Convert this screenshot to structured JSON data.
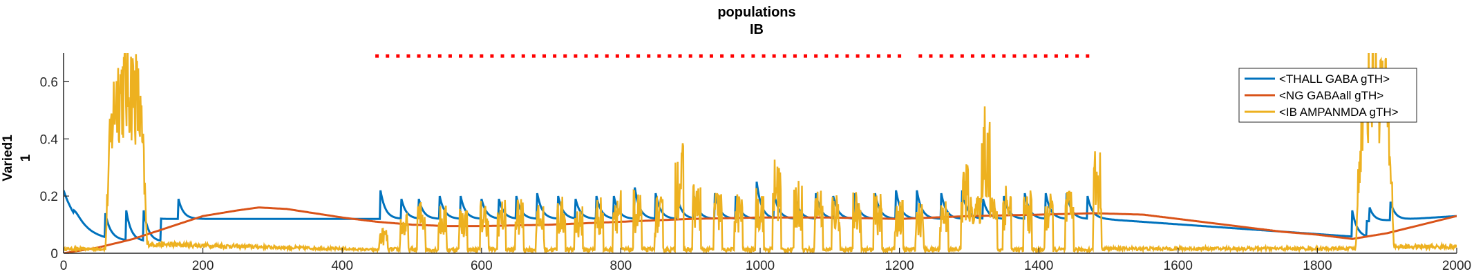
{
  "title_line1": "populations",
  "title_line2": "IB",
  "ylabel_line1": "Varied1",
  "ylabel_line2": "1",
  "chart_data": {
    "type": "line",
    "title": "populations IB",
    "xlabel": "",
    "ylabel": "Varied1 1",
    "xlim": [
      0,
      2000
    ],
    "ylim": [
      0,
      0.7
    ],
    "xticks": [
      0,
      200,
      400,
      600,
      800,
      1000,
      1200,
      1400,
      1600,
      1800,
      2000
    ],
    "xtick_labels": [
      "0",
      "200",
      "400",
      "600",
      "800",
      "1000",
      "1200",
      "1400",
      "1600",
      "1800",
      "2000"
    ],
    "yticks": [
      0,
      0.2,
      0.4,
      0.6
    ],
    "ytick_labels": [
      "0",
      "0.2",
      "0.4",
      "0.6"
    ],
    "grid": false,
    "legend_position": "top-right",
    "series": [
      {
        "name": "<THALL GABA gTH>",
        "color": "#0072BD",
        "pulse_times": [
          15,
          60,
          90,
          115,
          165,
          455,
          485,
          510,
          540,
          570,
          600,
          625,
          650,
          680,
          710,
          735,
          765,
          790,
          820,
          850,
          880,
          905,
          935,
          965,
          995,
          1020,
          1050,
          1080,
          1105,
          1135,
          1165,
          1195,
          1225,
          1260,
          1290,
          1320,
          1350,
          1380,
          1410,
          1440,
          1470,
          1580,
          1620,
          1660,
          1700,
          1740,
          1780,
          1850,
          1875,
          1905
        ],
        "pulse_peaks": [
          0.15,
          0.14,
          0.15,
          0.15,
          0.19,
          0.22,
          0.19,
          0.19,
          0.2,
          0.2,
          0.19,
          0.19,
          0.2,
          0.21,
          0.2,
          0.19,
          0.2,
          0.2,
          0.23,
          0.21,
          0.21,
          0.2,
          0.21,
          0.2,
          0.25,
          0.21,
          0.2,
          0.21,
          0.2,
          0.21,
          0.21,
          0.22,
          0.22,
          0.21,
          0.22,
          0.19,
          0.2,
          0.21,
          0.21,
          0.21,
          0.2,
          0.1,
          0.09,
          0.08,
          0.08,
          0.07,
          0.06,
          0.15,
          0.16,
          0.18
        ],
        "start_value": 0.22,
        "baseline": 0.12
      },
      {
        "name": "<NG GABAall gTH>",
        "color": "#D95319",
        "x": [
          0,
          50,
          100,
          150,
          200,
          250,
          280,
          320,
          360,
          400,
          450,
          500,
          550,
          600,
          700,
          800,
          900,
          1000,
          1100,
          1200,
          1300,
          1400,
          1480,
          1550,
          1600,
          1650,
          1700,
          1750,
          1800,
          1850,
          1900,
          1950,
          2000
        ],
        "y": [
          0.0,
          0.02,
          0.05,
          0.09,
          0.13,
          0.15,
          0.16,
          0.155,
          0.14,
          0.125,
          0.11,
          0.1,
          0.095,
          0.095,
          0.1,
          0.11,
          0.12,
          0.125,
          0.125,
          0.12,
          0.13,
          0.135,
          0.14,
          0.135,
          0.12,
          0.105,
          0.09,
          0.075,
          0.065,
          0.05,
          0.07,
          0.1,
          0.13
        ]
      },
      {
        "name": "<IB AMPANMDA gTH>",
        "color": "#EDB120",
        "burst_intervals": [
          [
            60,
            120
          ],
          [
            1855,
            1910
          ]
        ],
        "burst_peak": 0.7,
        "spike_times": [
          455,
          485,
          510,
          540,
          570,
          600,
          625,
          650,
          680,
          710,
          735,
          765,
          790,
          820,
          850,
          880,
          905,
          935,
          965,
          995,
          1020,
          1050,
          1080,
          1105,
          1135,
          1165,
          1195,
          1225,
          1260,
          1290,
          1320,
          1350,
          1380,
          1410,
          1440,
          1480
        ],
        "spike_peaks": [
          0.09,
          0.14,
          0.19,
          0.17,
          0.17,
          0.19,
          0.19,
          0.19,
          0.17,
          0.2,
          0.17,
          0.2,
          0.23,
          0.22,
          0.2,
          0.39,
          0.25,
          0.23,
          0.22,
          0.24,
          0.34,
          0.26,
          0.24,
          0.22,
          0.22,
          0.21,
          0.19,
          0.18,
          0.2,
          0.32,
          0.58,
          0.26,
          0.22,
          0.21,
          0.22,
          0.38
        ],
        "plateau_interval": [
          1300,
          1340
        ],
        "plateau_value": 0.2,
        "tail_value": 0.02
      }
    ],
    "annotation_markers": {
      "type": "dotted line",
      "color": "#FF0000",
      "y_value": 0.69,
      "x_start": 450,
      "x_end": 1480
    }
  }
}
